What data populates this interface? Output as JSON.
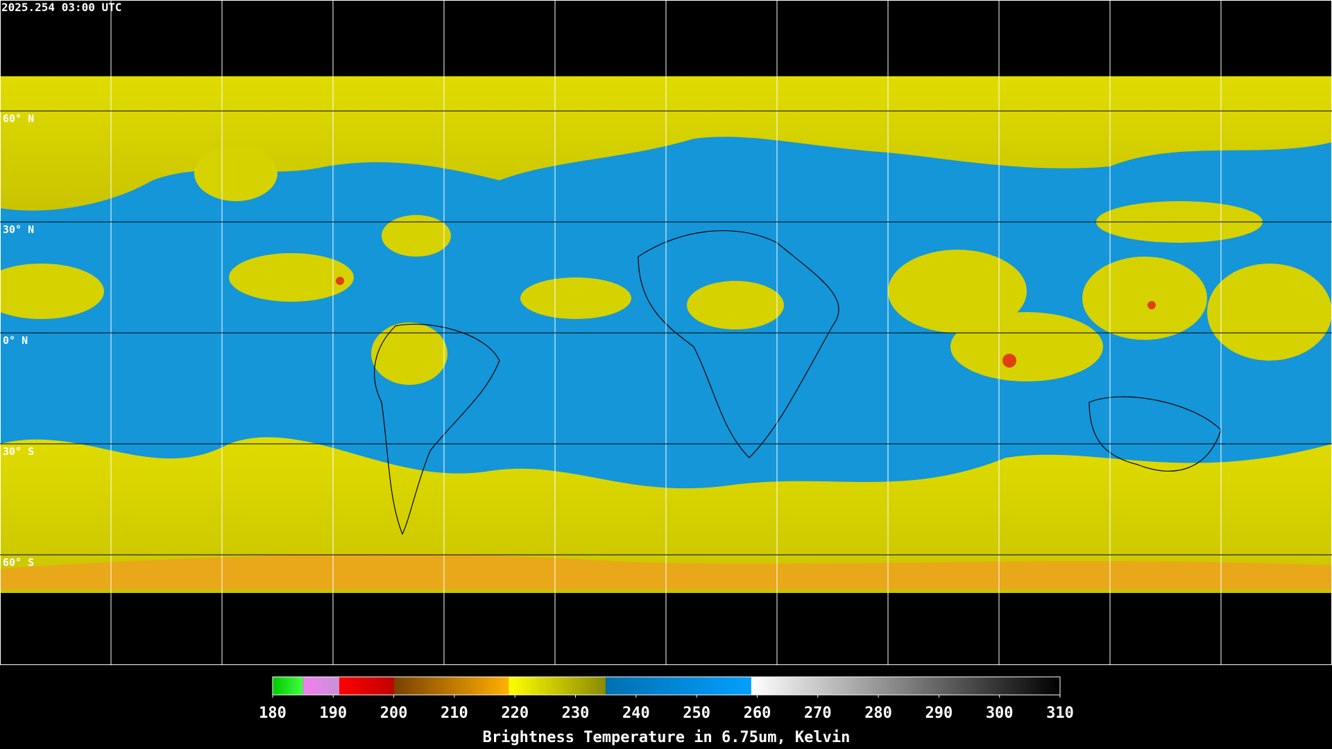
{
  "header": {
    "timestamp": "2025.254 03:00 UTC"
  },
  "latitude_labels": [
    "60° N",
    "30° N",
    "0° N",
    "30° S",
    "60° S"
  ],
  "colorbar": {
    "title": "Brightness Temperature in 6.75um, Kelvin",
    "range": [
      180,
      310
    ],
    "ticks": [
      180,
      190,
      200,
      210,
      220,
      230,
      240,
      250,
      260,
      270,
      280,
      290,
      300,
      310
    ],
    "segments": [
      {
        "from": 180,
        "to": 185,
        "colors": [
          "#00c800",
          "#40ff40"
        ]
      },
      {
        "from": 185,
        "to": 191,
        "colors": [
          "#f080f0",
          "#c890d8"
        ]
      },
      {
        "from": 191,
        "to": 200,
        "colors": [
          "#ff0000",
          "#c00000"
        ]
      },
      {
        "from": 200,
        "to": 219,
        "colors": [
          "#7a4000",
          "#ffb000"
        ]
      },
      {
        "from": 219,
        "to": 235,
        "colors": [
          "#ffff00",
          "#8a8a00"
        ]
      },
      {
        "from": 235,
        "to": 259,
        "colors": [
          "#0070b0",
          "#00a0ff"
        ]
      },
      {
        "from": 259,
        "to": 310,
        "colors": [
          "#ffffff",
          "#000000"
        ]
      }
    ]
  }
}
